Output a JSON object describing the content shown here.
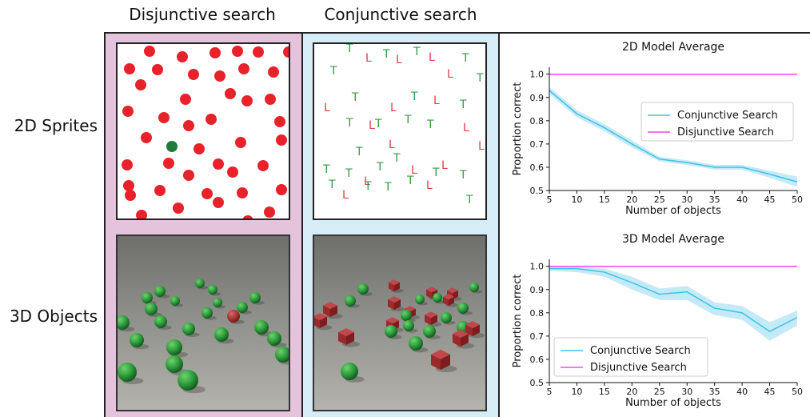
{
  "column_titles": {
    "disjunctive": "Disjunctive search",
    "conjunctive": "Conjunctive search"
  },
  "row_titles": {
    "sprites": "2D Sprites",
    "objects": "3D Objects"
  },
  "colors": {
    "disjunctive_panel_bg": "#e6c3dc",
    "conjunctive_panel_bg": "#d6ecf7",
    "distractor_red": "#e8222a",
    "target_green": "#1f7a3a",
    "letter_green": "#3a9a4a",
    "letter_red": "#e0404a",
    "conjunctive_line": "#3cc3e6",
    "conjunctive_band": "#9fdcf2",
    "disjunctive_line": "#ff44ee"
  },
  "sprite_2d_disjunctive": {
    "red_dots": 44,
    "green_dots": 1
  },
  "sprite_2d_conjunctive": {
    "letters": [
      "T",
      "L"
    ]
  },
  "chart_data": [
    {
      "type": "line",
      "title": "2D Model Average",
      "xlabel": "Number of objects",
      "ylabel": "Proportion correct",
      "xlim": [
        5,
        50
      ],
      "ylim": [
        0.5,
        1.03
      ],
      "xticks": [
        "5",
        "10",
        "15",
        "20",
        "25",
        "30",
        "35",
        "40",
        "45",
        "50"
      ],
      "yticks": [
        "0.5",
        "0.6",
        "0.7",
        "0.8",
        "0.9",
        "1.0"
      ],
      "legend_position": "center-right",
      "x": [
        5,
        10,
        15,
        20,
        25,
        30,
        35,
        40,
        45,
        50
      ],
      "series": [
        {
          "name": "Conjunctive Search",
          "values": [
            0.93,
            0.83,
            0.77,
            0.7,
            0.635,
            0.62,
            0.6,
            0.6,
            0.57,
            0.537
          ],
          "lower": [
            0.915,
            0.815,
            0.755,
            0.685,
            0.625,
            0.61,
            0.59,
            0.59,
            0.555,
            0.515
          ],
          "upper": [
            0.945,
            0.845,
            0.785,
            0.715,
            0.645,
            0.63,
            0.61,
            0.61,
            0.585,
            0.56
          ]
        },
        {
          "name": "Disjunctive Search",
          "values": [
            1.0,
            1.0,
            1.0,
            1.0,
            1.0,
            1.0,
            1.0,
            1.0,
            1.0,
            1.0
          ]
        }
      ]
    },
    {
      "type": "line",
      "title": "3D Model Average",
      "xlabel": "Number of objects",
      "ylabel": "Proportion correct",
      "xlim": [
        5,
        50
      ],
      "ylim": [
        0.5,
        1.03
      ],
      "xticks": [
        "5",
        "10",
        "15",
        "20",
        "25",
        "30",
        "35",
        "40",
        "45",
        "50"
      ],
      "yticks": [
        "0.5",
        "0.6",
        "0.7",
        "0.8",
        "0.9",
        "1.0"
      ],
      "legend_position": "lower-left",
      "x": [
        5,
        10,
        15,
        20,
        25,
        30,
        35,
        40,
        45,
        50
      ],
      "series": [
        {
          "name": "Conjunctive Search",
          "values": [
            0.99,
            0.99,
            0.975,
            0.93,
            0.88,
            0.89,
            0.82,
            0.8,
            0.72,
            0.78
          ],
          "lower": [
            0.98,
            0.975,
            0.955,
            0.9,
            0.855,
            0.855,
            0.79,
            0.77,
            0.68,
            0.745
          ],
          "upper": [
            1.0,
            1.0,
            0.99,
            0.955,
            0.905,
            0.915,
            0.845,
            0.83,
            0.76,
            0.81
          ]
        },
        {
          "name": "Disjunctive Search",
          "values": [
            1.0,
            1.0,
            1.0,
            1.0,
            1.0,
            1.0,
            1.0,
            1.0,
            1.0,
            1.0
          ]
        }
      ]
    }
  ]
}
